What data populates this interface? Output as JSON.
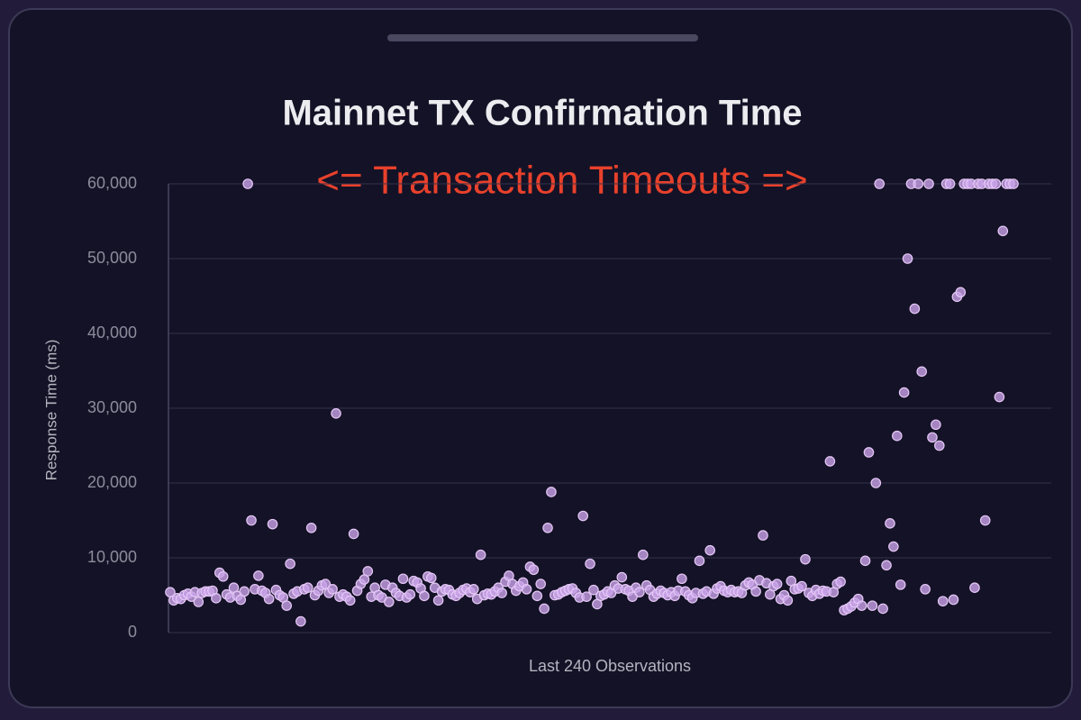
{
  "chart_data": {
    "type": "scatter",
    "title": "Mainnet TX Confirmation Time",
    "annotation": "<= Transaction Timeouts =>",
    "x_label": "Last 240 Observations",
    "y_label": "Response Time (ms)",
    "color": "#c9a3e8",
    "grid": true,
    "ylim": [
      0,
      60000
    ],
    "yticks": [
      0,
      {
        "value": 10000,
        "label": "10,000"
      },
      {
        "value": 20000,
        "label": "20,000"
      },
      {
        "value": 30000,
        "label": "30,000"
      },
      {
        "value": 40000,
        "label": "40,000"
      },
      {
        "value": 50000,
        "label": "50,000"
      },
      {
        "value": 60000,
        "label": "60,000"
      }
    ],
    "values": [
      5400,
      4300,
      4600,
      4500,
      5000,
      5200,
      4800,
      5400,
      4100,
      5300,
      5500,
      5500,
      5600,
      4600,
      8000,
      7500,
      5100,
      4700,
      6000,
      4900,
      4400,
      5500,
      60000,
      15000,
      5800,
      7600,
      5600,
      5300,
      4500,
      14500,
      5700,
      5000,
      4700,
      3600,
      9200,
      5200,
      5500,
      1500,
      5800,
      6000,
      14000,
      5000,
      5600,
      6300,
      6500,
      5300,
      5800,
      29300,
      4800,
      5100,
      4800,
      4300,
      13200,
      5600,
      6500,
      7100,
      8200,
      4800,
      6000,
      5000,
      4700,
      6400,
      4100,
      6000,
      5300,
      4900,
      7200,
      4700,
      5100,
      6900,
      6700,
      5900,
      4900,
      7500,
      7300,
      6000,
      4300,
      5500,
      5800,
      5700,
      5100,
      4900,
      5300,
      5700,
      5900,
      5400,
      5800,
      4500,
      10400,
      5000,
      5200,
      5100,
      5500,
      6000,
      5300,
      6800,
      7600,
      6500,
      5600,
      6200,
      6700,
      5800,
      8800,
      8400,
      4900,
      6500,
      3200,
      14000,
      18800,
      5000,
      5100,
      5400,
      5600,
      5800,
      5900,
      5300,
      4700,
      15600,
      4800,
      9200,
      5700,
      3800,
      4900,
      5100,
      5500,
      5300,
      6300,
      5900,
      7400,
      5800,
      5600,
      4800,
      6000,
      5400,
      10400,
      6300,
      5700,
      4800,
      5200,
      5600,
      5300,
      5000,
      5400,
      4900,
      5600,
      7200,
      5500,
      5000,
      4600,
      5300,
      9600,
      5200,
      5500,
      11000,
      5200,
      5900,
      6200,
      5600,
      5400,
      5700,
      5400,
      5500,
      5300,
      6300,
      6700,
      6400,
      5500,
      7000,
      13000,
      6600,
      5100,
      6200,
      6500,
      4500,
      5000,
      4300,
      6900,
      5800,
      5900,
      6200,
      9800,
      5300,
      4900,
      5700,
      5200,
      5600,
      5500,
      22900,
      5400,
      6500,
      6800,
      3000,
      3200,
      3500,
      4000,
      4500,
      3600,
      9600,
      24100,
      3600,
      20000,
      60000,
      3200,
      9000,
      14600,
      11500,
      26300,
      6400,
      32100,
      50000,
      60000,
      43300,
      60000,
      34900,
      5800,
      60000,
      26100,
      27800,
      25000,
      4200,
      60000,
      60000,
      4400,
      44900,
      45500,
      60000,
      60000,
      60000,
      6000,
      60000,
      60000,
      15000,
      60000,
      60000,
      60000,
      31500,
      53700,
      60000,
      60000,
      60000
    ]
  }
}
